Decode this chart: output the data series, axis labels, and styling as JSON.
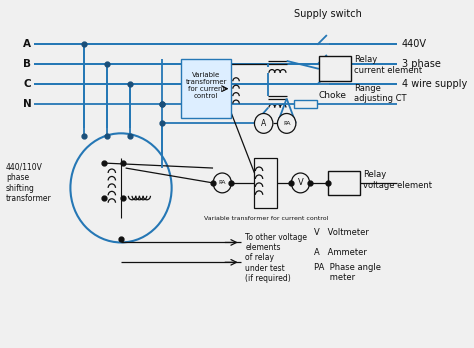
{
  "bg": "#f0f0f0",
  "wc": "#2577b5",
  "dc": "#111111",
  "nc": "#1a4f7a",
  "labels": {
    "supply_switch": "Supply switch",
    "440v": "440V",
    "3phase": "3 phase",
    "4wire": "4 wire supply",
    "choke": "Choke",
    "vt_current": "Variable\ntransformer\nfor current\ncontrol",
    "relay_current": "Relay\ncurrent element",
    "range_ct": "Range\nadjusting CT",
    "relay_voltage": "Relay\nvoltage element",
    "vt_voltage": "Variable transformer for current control",
    "phase_shift": "440/110V\nphase\nshifting\ntransformer",
    "to_other": "To other voltage\nelements\nof relay\nunder test\n(if required)",
    "leg_v": "V   Voltmeter",
    "leg_a": "A   Ammeter",
    "leg_pa": "PA  Phase angle\n      meter",
    "A": "A",
    "B": "B",
    "C": "C",
    "N": "N"
  }
}
